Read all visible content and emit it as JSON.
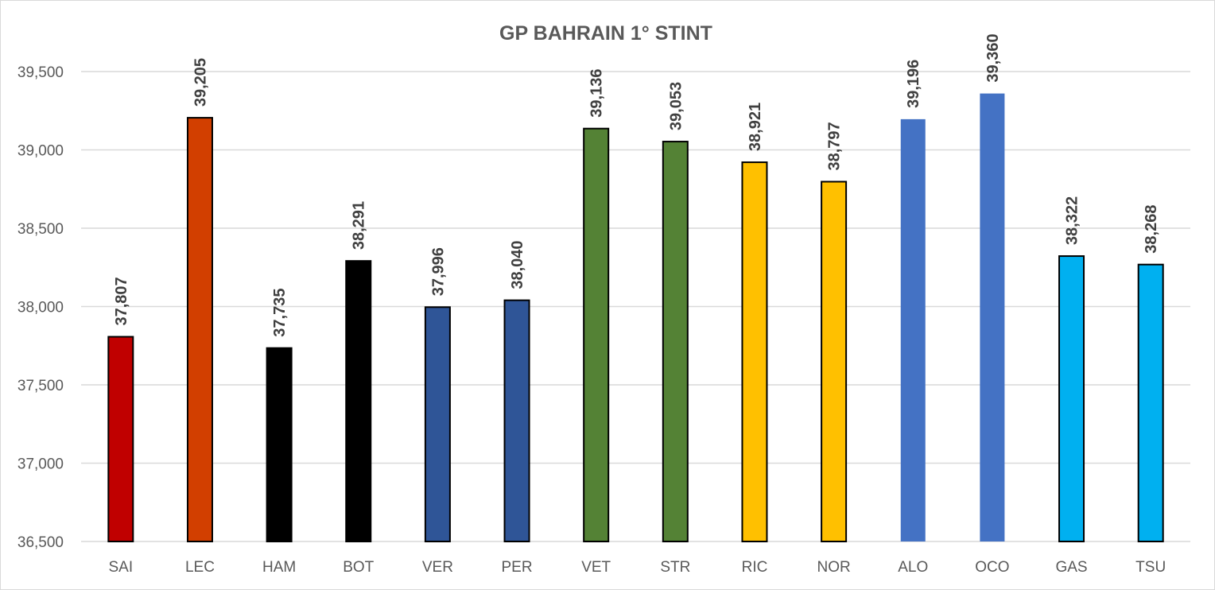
{
  "chart_data": {
    "type": "bar",
    "title": "GP BAHRAIN 1° STINT",
    "xlabel": "",
    "ylabel": "",
    "ylim": [
      36.5,
      39.5
    ],
    "y_ticks": [
      {
        "value": 36.5,
        "label": "36,500"
      },
      {
        "value": 37.0,
        "label": "37,000"
      },
      {
        "value": 37.5,
        "label": "37,500"
      },
      {
        "value": 38.0,
        "label": "38,000"
      },
      {
        "value": 38.5,
        "label": "38,500"
      },
      {
        "value": 39.0,
        "label": "39,000"
      },
      {
        "value": 39.5,
        "label": "39,500"
      }
    ],
    "grid": true,
    "legend": "none",
    "categories": [
      "SAI",
      "LEC",
      "HAM",
      "BOT",
      "VER",
      "PER",
      "VET",
      "STR",
      "RIC",
      "NOR",
      "ALO",
      "OCO",
      "GAS",
      "TSU"
    ],
    "values": [
      37.807,
      39.205,
      37.735,
      38.291,
      37.996,
      38.04,
      39.136,
      39.053,
      38.921,
      38.797,
      39.196,
      39.36,
      38.322,
      38.268
    ],
    "value_labels": [
      "37,807",
      "39,205",
      "37,735",
      "38,291",
      "37,996",
      "38,040",
      "39,136",
      "39,053",
      "38,921",
      "38,797",
      "39,196",
      "39,360",
      "38,322",
      "38,268"
    ],
    "colors": [
      "#c00000",
      "#d23f00",
      "#000000",
      "#000000",
      "#2f5597",
      "#2f5597",
      "#548235",
      "#548235",
      "#ffc000",
      "#ffc000",
      "#4472c4",
      "#4472c4",
      "#00b0f0",
      "#00b0f0"
    ],
    "outlined": [
      true,
      true,
      true,
      true,
      true,
      true,
      true,
      true,
      true,
      true,
      false,
      false,
      true,
      true
    ]
  }
}
